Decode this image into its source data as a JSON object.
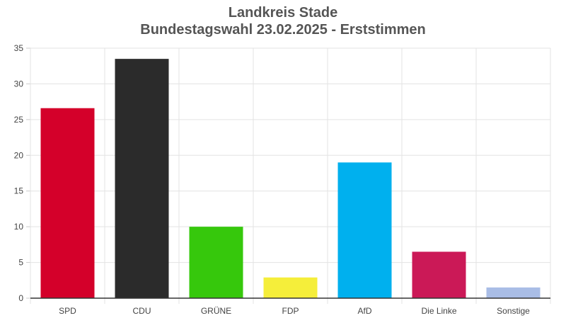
{
  "chart_data": {
    "type": "bar",
    "title": "Landkreis Stade",
    "subtitle": "Bundestagswahl 23.02.2025  - Erststimmen",
    "categories": [
      "SPD",
      "CDU",
      "GRÜNE",
      "FDP",
      "AfD",
      "Die Linke",
      "Sonstige"
    ],
    "values": [
      26.6,
      33.5,
      10.0,
      2.9,
      19.0,
      6.5,
      1.5
    ],
    "colors": [
      "#d4002a",
      "#2b2b2b",
      "#36c80c",
      "#f5ee3a",
      "#00b0ee",
      "#cb1957",
      "#a9bde6"
    ],
    "xlabel": "",
    "ylabel": "",
    "ylim": [
      0,
      35
    ],
    "yticks": [
      0,
      5,
      10,
      15,
      20,
      25,
      30,
      35
    ],
    "grid": true,
    "legend": "none"
  }
}
